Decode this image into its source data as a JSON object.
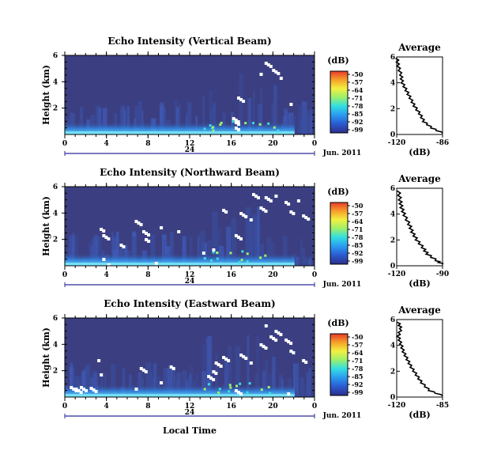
{
  "chart_data": {
    "type": "heatmap",
    "x_axis": {
      "label": "Local Time",
      "ticks": [
        "0",
        "4",
        "8",
        "12",
        "16",
        "20",
        "0"
      ],
      "day_label": "24",
      "date_label": "Jun. 2011"
    },
    "y_axis": {
      "label": "Height (km)",
      "ticks": [
        "6",
        "4",
        "2"
      ],
      "range": [
        0,
        6
      ]
    },
    "colorbar": {
      "unit": "(dB)",
      "ticks": [
        "-50",
        "-57",
        "-64",
        "-71",
        "-78",
        "-85",
        "-92",
        "-99"
      ],
      "colors": [
        "#2c2f8a",
        "#2b5fd6",
        "#2aa0f0",
        "#35e0e0",
        "#9ef06a",
        "#f2f040",
        "#f7a02a",
        "#e83a2a"
      ]
    },
    "background_color": "#3b3f82",
    "panels": [
      {
        "title": "Echo Intensity (Vertical Beam)",
        "average": {
          "title": "Average",
          "xlabel": "(dB)",
          "xticks": [
            "-120",
            "-86"
          ],
          "xlim": [
            -120,
            -86
          ],
          "yticks": [
            "6",
            "4",
            "2",
            "0"
          ],
          "profile": [
            {
              "h": 5.9,
              "v": -120
            },
            {
              "h": 5.3,
              "v": -119
            },
            {
              "h": 4.6,
              "v": -117
            },
            {
              "h": 4.0,
              "v": -116
            },
            {
              "h": 3.4,
              "v": -113
            },
            {
              "h": 2.8,
              "v": -110
            },
            {
              "h": 2.2,
              "v": -107
            },
            {
              "h": 1.6,
              "v": -103
            },
            {
              "h": 1.0,
              "v": -100
            },
            {
              "h": 0.5,
              "v": -94
            },
            {
              "h": 0.1,
              "v": -86
            }
          ]
        }
      },
      {
        "title": "Echo Intensity (Northward Beam)",
        "average": {
          "title": "Average",
          "xlabel": "(dB)",
          "xticks": [
            "-120",
            "-90"
          ],
          "xlim": [
            -120,
            -90
          ],
          "yticks": [
            "6",
            "4",
            "2",
            "0"
          ],
          "profile": [
            {
              "h": 5.8,
              "v": -119
            },
            {
              "h": 5.1,
              "v": -118
            },
            {
              "h": 4.5,
              "v": -117
            },
            {
              "h": 3.9,
              "v": -115
            },
            {
              "h": 3.2,
              "v": -112
            },
            {
              "h": 2.6,
              "v": -110
            },
            {
              "h": 2.0,
              "v": -107
            },
            {
              "h": 1.4,
              "v": -103
            },
            {
              "h": 0.9,
              "v": -100
            },
            {
              "h": 0.4,
              "v": -94
            },
            {
              "h": 0.1,
              "v": -90
            }
          ]
        }
      },
      {
        "title": "Echo Intensity (Eastward Beam)",
        "average": {
          "title": "Average",
          "xlabel": "(dB)",
          "xticks": [
            "-120",
            "-85"
          ],
          "xlim": [
            -120,
            -85
          ],
          "yticks": [
            "6",
            "4",
            "2",
            "0"
          ],
          "profile": [
            {
              "h": 5.8,
              "v": -119
            },
            {
              "h": 5.3,
              "v": -117
            },
            {
              "h": 4.7,
              "v": -119
            },
            {
              "h": 4.1,
              "v": -117
            },
            {
              "h": 3.5,
              "v": -115
            },
            {
              "h": 2.9,
              "v": -112
            },
            {
              "h": 2.3,
              "v": -109
            },
            {
              "h": 1.7,
              "v": -105
            },
            {
              "h": 1.1,
              "v": -101
            },
            {
              "h": 0.5,
              "v": -95
            },
            {
              "h": 0.1,
              "v": -85
            }
          ]
        }
      }
    ]
  }
}
